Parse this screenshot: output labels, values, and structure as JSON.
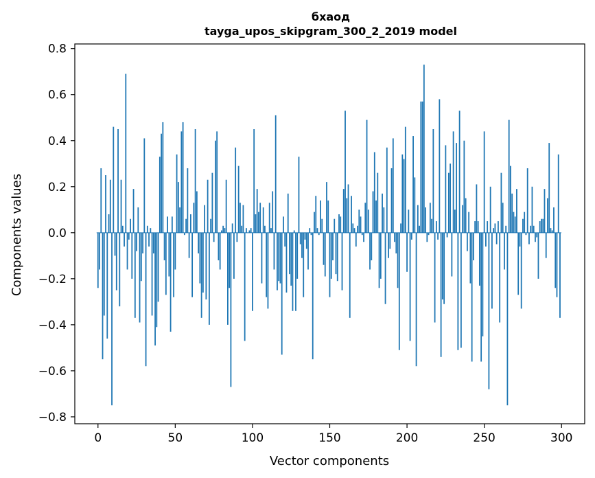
{
  "chart_data": {
    "type": "bar",
    "title": "бхаод",
    "subtitle": "tayga_upos_skipgram_300_2_2019 model",
    "xlabel": "Vector components",
    "ylabel": "Components values",
    "xlim": [
      -15,
      315
    ],
    "ylim": [
      -0.83,
      0.82
    ],
    "xticks": [
      0,
      50,
      100,
      150,
      200,
      250,
      300
    ],
    "xtick_labels": [
      "0",
      "50",
      "100",
      "150",
      "200",
      "250",
      "300"
    ],
    "yticks": [
      -0.8,
      -0.6,
      -0.4,
      -0.2,
      0.0,
      0.2,
      0.4,
      0.6,
      0.8
    ],
    "ytick_labels": [
      "−0.8",
      "−0.6",
      "−0.4",
      "−0.2",
      "0.0",
      "0.2",
      "0.4",
      "0.6",
      "0.8"
    ],
    "grid": false,
    "bar_color": "#1f77b4",
    "x": [
      0,
      1,
      2,
      3,
      4,
      5,
      6,
      7,
      8,
      9,
      10,
      11,
      12,
      13,
      14,
      15,
      16,
      17,
      18,
      19,
      20,
      21,
      22,
      23,
      24,
      25,
      26,
      27,
      28,
      29,
      30,
      31,
      32,
      33,
      34,
      35,
      36,
      37,
      38,
      39,
      40,
      41,
      42,
      43,
      44,
      45,
      46,
      47,
      48,
      49,
      50,
      51,
      52,
      53,
      54,
      55,
      56,
      57,
      58,
      59,
      60,
      61,
      62,
      63,
      64,
      65,
      66,
      67,
      68,
      69,
      70,
      71,
      72,
      73,
      74,
      75,
      76,
      77,
      78,
      79,
      80,
      81,
      82,
      83,
      84,
      85,
      86,
      87,
      88,
      89,
      90,
      91,
      92,
      93,
      94,
      95,
      96,
      97,
      98,
      99,
      100,
      101,
      102,
      103,
      104,
      105,
      106,
      107,
      108,
      109,
      110,
      111,
      112,
      113,
      114,
      115,
      116,
      117,
      118,
      119,
      120,
      121,
      122,
      123,
      124,
      125,
      126,
      127,
      128,
      129,
      130,
      131,
      132,
      133,
      134,
      135,
      136,
      137,
      138,
      139,
      140,
      141,
      142,
      143,
      144,
      145,
      146,
      147,
      148,
      149,
      150,
      151,
      152,
      153,
      154,
      155,
      156,
      157,
      158,
      159,
      160,
      161,
      162,
      163,
      164,
      165,
      166,
      167,
      168,
      169,
      170,
      171,
      172,
      173,
      174,
      175,
      176,
      177,
      178,
      179,
      180,
      181,
      182,
      183,
      184,
      185,
      186,
      187,
      188,
      189,
      190,
      191,
      192,
      193,
      194,
      195,
      196,
      197,
      198,
      199,
      200,
      201,
      202,
      203,
      204,
      205,
      206,
      207,
      208,
      209,
      210,
      211,
      212,
      213,
      214,
      215,
      216,
      217,
      218,
      219,
      220,
      221,
      222,
      223,
      224,
      225,
      226,
      227,
      228,
      229,
      230,
      231,
      232,
      233,
      234,
      235,
      236,
      237,
      238,
      239,
      240,
      241,
      242,
      243,
      244,
      245,
      246,
      247,
      248,
      249,
      250,
      251,
      252,
      253,
      254,
      255,
      256,
      257,
      258,
      259,
      260,
      261,
      262,
      263,
      264,
      265,
      266,
      267,
      268,
      269,
      270,
      271,
      272,
      273,
      274,
      275,
      276,
      277,
      278,
      279,
      280,
      281,
      282,
      283,
      284,
      285,
      286,
      287,
      288,
      289,
      290,
      291,
      292,
      293,
      294,
      295,
      296,
      297,
      298,
      299
    ],
    "values": [
      -0.24,
      -0.16,
      0.28,
      -0.55,
      -0.36,
      0.25,
      -0.46,
      0.08,
      0.23,
      -0.75,
      0.46,
      -0.1,
      -0.25,
      0.45,
      -0.32,
      0.23,
      0.03,
      -0.06,
      0.69,
      -0.16,
      -0.03,
      0.06,
      -0.2,
      0.19,
      -0.37,
      -0.08,
      0.11,
      -0.39,
      -0.21,
      -0.09,
      0.41,
      -0.58,
      0.03,
      -0.06,
      0.02,
      -0.36,
      -0.09,
      -0.49,
      -0.41,
      -0.3,
      0.33,
      0.43,
      0.48,
      -0.12,
      -0.27,
      0.07,
      -0.19,
      -0.43,
      0.07,
      -0.28,
      -0.16,
      0.34,
      0.22,
      0.11,
      0.44,
      0.48,
      -0.01,
      0.06,
      0.28,
      -0.11,
      0.08,
      -0.28,
      0.13,
      0.45,
      0.18,
      -0.09,
      -0.22,
      -0.37,
      -0.26,
      0.12,
      -0.29,
      0.23,
      -0.4,
      0.06,
      0.26,
      -0.04,
      0.4,
      0.44,
      -0.12,
      -0.16,
      0.01,
      0.03,
      0.02,
      0.23,
      -0.4,
      -0.24,
      -0.67,
      0.04,
      -0.2,
      0.37,
      -0.04,
      0.29,
      0.13,
      0.03,
      0.12,
      -0.47,
      0.02,
      0.0,
      0.01,
      0.02,
      -0.34,
      0.45,
      0.08,
      0.19,
      0.09,
      0.13,
      -0.22,
      0.11,
      0.03,
      -0.28,
      -0.33,
      0.13,
      0.02,
      0.18,
      -0.16,
      0.51,
      -0.25,
      -0.21,
      -0.22,
      -0.53,
      0.07,
      -0.06,
      -0.26,
      0.17,
      -0.18,
      -0.23,
      -0.34,
      0.01,
      -0.34,
      -0.2,
      0.33,
      -0.05,
      -0.11,
      -0.28,
      -0.03,
      -0.07,
      -0.16,
      0.02,
      -0.01,
      -0.55,
      0.09,
      0.16,
      0.02,
      -0.01,
      0.14,
      0.06,
      -0.14,
      -0.19,
      0.22,
      0.14,
      -0.28,
      -0.2,
      -0.12,
      0.06,
      -0.18,
      -0.21,
      0.08,
      0.07,
      -0.25,
      0.19,
      0.53,
      0.15,
      0.21,
      -0.37,
      0.16,
      0.04,
      0.02,
      -0.06,
      0.03,
      0.1,
      0.07,
      -0.01,
      -0.04,
      0.13,
      0.49,
      0.1,
      -0.16,
      -0.12,
      0.18,
      0.35,
      0.14,
      0.26,
      -0.24,
      -0.2,
      0.17,
      0.11,
      -0.31,
      0.37,
      -0.11,
      -0.07,
      0.28,
      0.41,
      -0.04,
      -0.09,
      -0.24,
      -0.51,
      0.04,
      0.34,
      0.32,
      0.46,
      -0.17,
      0.1,
      -0.47,
      -0.03,
      0.42,
      0.24,
      -0.58,
      0.12,
      0.03,
      0.57,
      0.57,
      0.73,
      0.11,
      -0.04,
      -0.01,
      0.13,
      0.06,
      0.45,
      -0.39,
      0.05,
      -0.03,
      0.58,
      -0.54,
      -0.29,
      -0.31,
      0.38,
      -0.02,
      0.26,
      0.3,
      -0.19,
      0.44,
      0.1,
      0.39,
      -0.51,
      0.53,
      -0.5,
      0.12,
      0.4,
      0.15,
      -0.08,
      0.09,
      -0.22,
      -0.56,
      -0.12,
      0.05,
      0.21,
      0.05,
      -0.23,
      -0.56,
      -0.45,
      0.44,
      -0.06,
      0.05,
      -0.68,
      0.2,
      -0.33,
      0.02,
      0.04,
      -0.05,
      0.05,
      -0.39,
      0.26,
      0.13,
      -0.16,
      0.03,
      -0.75,
      0.49,
      0.29,
      0.17,
      0.09,
      0.07,
      0.19,
      -0.27,
      -0.06,
      -0.33,
      0.06,
      0.09,
      -0.01,
      0.28,
      -0.05,
      0.03,
      0.2,
      0.03,
      -0.04,
      -0.02,
      -0.2,
      0.05,
      0.06,
      0.06,
      0.19,
      -0.11,
      0.15,
      0.39,
      0.02,
      0.01,
      0.11,
      -0.24,
      -0.28,
      0.34,
      -0.37
    ]
  }
}
